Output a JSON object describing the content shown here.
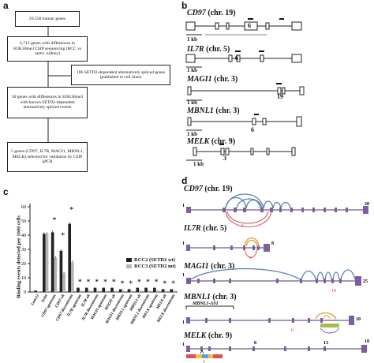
{
  "panel_a": {
    "letter": "a",
    "boxes": {
      "b1": "26,558 human genes",
      "b2": "6,712 genes with differences in H3K36me3 ChIP sequencing (RCC vs unmv. kidney)",
      "b3": "186 SETD2-dependent alternatively spliced genes (published in cell lines)",
      "b4": "30 genes with differences in H3K36me3 with known SETD2-dependent alternatively spliced events",
      "b5": "5 genes (CD97, IL7R, MAGI1, MBNL1, MELK) selected for validation by ChIP qPCR"
    }
  },
  "panel_b": {
    "letter": "b",
    "scale_label": "1 kb",
    "genes": [
      {
        "name": "CD97",
        "chr": "(chr. 19)",
        "exon": "6"
      },
      {
        "name": "IL7R",
        "chr": "(chr. 5)",
        "exon": "6"
      },
      {
        "name": "MAGI1",
        "chr": "(chr. 3)",
        "exon": "19"
      },
      {
        "name": "MBNL1",
        "chr": "(chr. 3)",
        "exon": "6"
      },
      {
        "name": "MELK",
        "chr": "(chr. 9)",
        "exon": "3"
      }
    ]
  },
  "panel_c": {
    "letter": "c",
    "ylabel": "Binding events detected per 1000 cells",
    "legend": [
      "RCC2 (SETD2 wt)",
      "RCC3 (SETD2 mt)"
    ]
  },
  "panel_d": {
    "letter": "d",
    "genes": [
      {
        "name": "CD97",
        "chr": "(chr. 19)",
        "start": "1",
        "end": "20",
        "exon": "6"
      },
      {
        "name": "IL7R",
        "chr": "(chr. 5)",
        "start": "1",
        "end": "8",
        "exon": "6"
      },
      {
        "name": "MAGI1",
        "chr": "(chr. 3)",
        "start": "1",
        "end": "25",
        "exon": "19"
      },
      {
        "name": "MBNL1",
        "chr": "(chr. 3)",
        "start": "1",
        "end": "10",
        "exon": "6",
        "antisense": "MBNL1-AS1"
      },
      {
        "name": "MELK",
        "chr": "(chr. 9)",
        "start": "1",
        "mid1": "8",
        "mid2": "13",
        "end": "18",
        "exon": "3"
      }
    ]
  },
  "chart_data": {
    "type": "bar",
    "title": "",
    "ylabel": "Binding events detected per 1000 cells",
    "ylim": [
      0,
      60
    ],
    "yticks": [
      0,
      10,
      20,
      30,
      40,
      50,
      60
    ],
    "categories": [
      "Lmtr12",
      "Actin",
      "CD97 upstream",
      "CD97 alt",
      "CD97 downstream",
      "IL7R upstream",
      "IL7R alt",
      "IL7R downstream",
      "MAGI1 upstream",
      "MAGI1 alt",
      "MAGI1 downstream",
      "MBNL1 upstream",
      "MBNL1 alt",
      "MBNL1 downstream",
      "MELK upstream",
      "MELK alt",
      "MELK downstream"
    ],
    "series": [
      {
        "name": "RCC2 (SETD2 wt)",
        "color": "#222222",
        "values": [
          1,
          41,
          42,
          29,
          48,
          3,
          3,
          3,
          3,
          3,
          2,
          2,
          3,
          3,
          3,
          2,
          2
        ]
      },
      {
        "name": "RCC3 (SETD2 mt)",
        "color": "#b4b4b4",
        "values": [
          0.5,
          41,
          24,
          13,
          21,
          1,
          1,
          1,
          1,
          1,
          1,
          1,
          1,
          1,
          1,
          1,
          1
        ]
      }
    ],
    "significance": [
      2,
      3,
      4,
      5,
      6,
      7,
      8,
      9,
      10,
      11,
      12,
      13,
      14,
      15,
      16
    ],
    "significance_mark": "*",
    "legend_position": "right"
  }
}
